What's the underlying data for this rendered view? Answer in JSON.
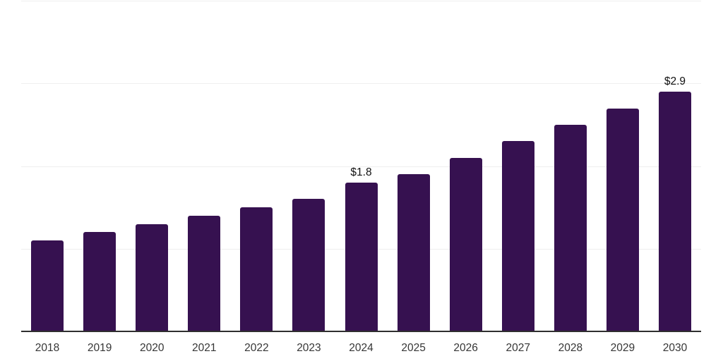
{
  "chart_data": {
    "type": "bar",
    "title": "",
    "xlabel": "",
    "ylabel": "",
    "categories": [
      "2018",
      "2019",
      "2020",
      "2021",
      "2022",
      "2023",
      "2024",
      "2025",
      "2026",
      "2027",
      "2028",
      "2029",
      "2030"
    ],
    "values": [
      1.1,
      1.2,
      1.3,
      1.4,
      1.5,
      1.6,
      1.8,
      1.9,
      2.1,
      2.3,
      2.5,
      2.7,
      2.9
    ],
    "value_labels": [
      {
        "category": "2024",
        "text": "$1.8"
      },
      {
        "category": "2030",
        "text": "$2.9"
      }
    ],
    "ylim": [
      0,
      4.01
    ],
    "gridline_values": [
      1,
      2,
      3,
      4
    ],
    "grid": "horizontal-only",
    "legend": "none",
    "y_axis_tick_labels_visible": false,
    "colors": {
      "bar": "#361150",
      "axis_line": "#2f2f2f",
      "gridline": "#efefef",
      "tick_label": "#363636",
      "value_label": "#111111",
      "background": "#ffffff"
    }
  }
}
